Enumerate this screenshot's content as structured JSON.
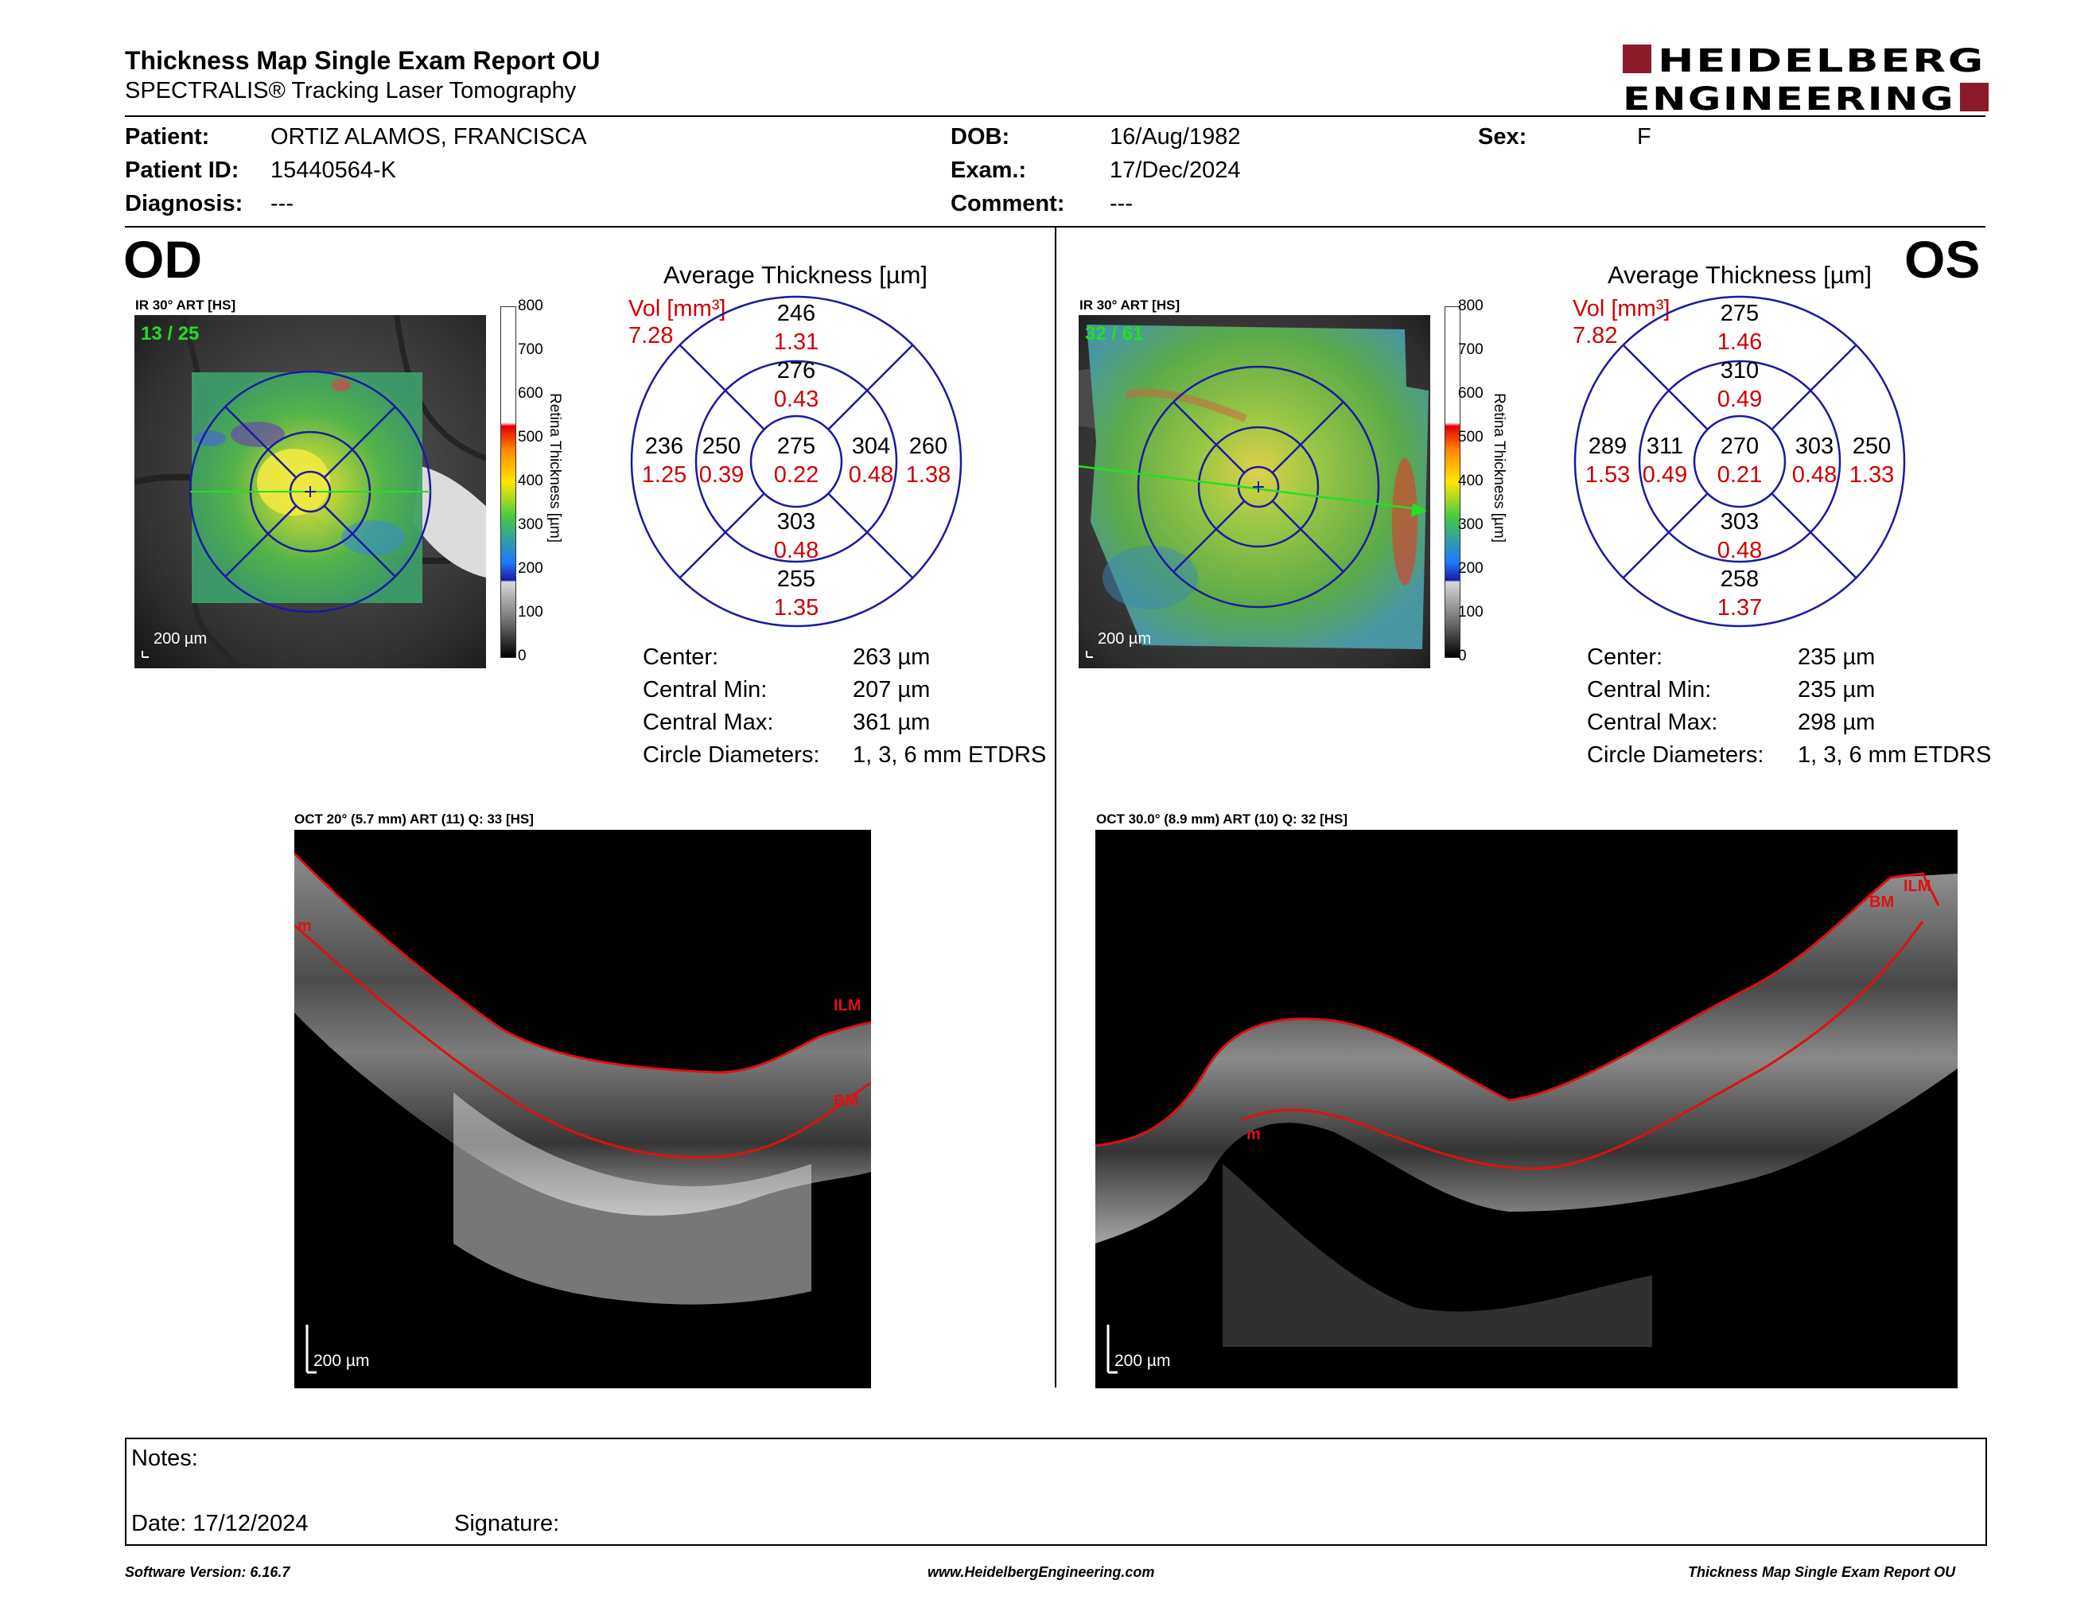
{
  "header": {
    "title": "Thickness Map Single Exam Report OU",
    "subtitle": "SPECTRALIS® Tracking Laser Tomography",
    "logo_line1": "HEIDELBERG",
    "logo_line2": "ENGINEERING",
    "logo_color": "#8b1a2b"
  },
  "patient": {
    "patient_label": "Patient:",
    "patient_value": "ORTIZ ALAMOS, FRANCISCA",
    "patient_id_label": "Patient ID:",
    "patient_id_value": "15440564-K",
    "diagnosis_label": "Diagnosis:",
    "diagnosis_value": "---",
    "dob_label": "DOB:",
    "dob_value": "16/Aug/1982",
    "exam_label": "Exam.:",
    "exam_value": "17/Dec/2024",
    "comment_label": "Comment:",
    "comment_value": "---",
    "sex_label": "Sex:",
    "sex_value": "F"
  },
  "od": {
    "eye_label": "OD",
    "fundus_caption": "IR 30° ART [HS]",
    "frame_counter": "13 / 25",
    "scale_bar": "200 µm",
    "avg_title": "Average Thickness [µm]",
    "vol_label": "Vol [mm³]",
    "vol_total": "7.28",
    "grid": {
      "outer_superior": "246",
      "outer_superior_vol": "1.31",
      "inner_superior": "276",
      "inner_superior_vol": "0.43",
      "outer_nasal": "236",
      "outer_nasal_vol": "1.25",
      "inner_nasal": "250",
      "inner_nasal_vol": "0.39",
      "center": "275",
      "center_vol": "0.22",
      "inner_temporal": "304",
      "inner_temporal_vol": "0.48",
      "outer_temporal": "260",
      "outer_temporal_vol": "1.38",
      "inner_inferior": "303",
      "inner_inferior_vol": "0.48",
      "outer_inferior": "255",
      "outer_inferior_vol": "1.35"
    },
    "stats": {
      "center_label": "Center:",
      "center_value": "263 µm",
      "min_label": "Central Min:",
      "min_value": "207 µm",
      "max_label": "Central Max:",
      "max_value": "361 µm",
      "diam_label": "Circle Diameters:",
      "diam_value": "1, 3, 6 mm ETDRS"
    },
    "oct_caption": "OCT 20° (5.7 mm) ART (11) Q: 33 [HS]",
    "oct_scale": "200 µm",
    "oct_labels": {
      "ilm": "ILM",
      "bm": "BM",
      "m": "m"
    }
  },
  "os": {
    "eye_label": "OS",
    "fundus_caption": "IR 30° ART [HS]",
    "frame_counter": "32 / 61",
    "scale_bar": "200 µm",
    "avg_title": "Average Thickness [µm]",
    "vol_label": "Vol [mm³]",
    "vol_total": "7.82",
    "grid": {
      "outer_superior": "275",
      "outer_superior_vol": "1.46",
      "inner_superior": "310",
      "inner_superior_vol": "0.49",
      "outer_nasal": "289",
      "outer_nasal_vol": "1.53",
      "inner_nasal": "311",
      "inner_nasal_vol": "0.49",
      "center": "270",
      "center_vol": "0.21",
      "inner_temporal": "303",
      "inner_temporal_vol": "0.48",
      "outer_temporal": "250",
      "outer_temporal_vol": "1.33",
      "inner_inferior": "303",
      "inner_inferior_vol": "0.48",
      "outer_inferior": "258",
      "outer_inferior_vol": "1.37"
    },
    "stats": {
      "center_label": "Center:",
      "center_value": "235 µm",
      "min_label": "Central Min:",
      "min_value": "235 µm",
      "max_label": "Central Max:",
      "max_value": "298 µm",
      "diam_label": "Circle Diameters:",
      "diam_value": "1, 3, 6 mm ETDRS"
    },
    "oct_caption": "OCT 30.0° (8.9 mm) ART (10) Q: 32 [HS]",
    "oct_scale": "200 µm",
    "oct_labels": {
      "ilm": "ILM",
      "bm": "BM",
      "m": "m"
    }
  },
  "colorbar": {
    "ticks": [
      "800",
      "700",
      "600",
      "500",
      "400",
      "300",
      "200",
      "100",
      "0"
    ],
    "title": "Retina Thickness [µm]"
  },
  "notes": {
    "notes_label": "Notes:",
    "date_label": "Date: 17/12/2024",
    "signature_label": "Signature:"
  },
  "footer": {
    "left": "Software Version: 6.16.7",
    "center": "www.HeidelbergEngineering.com",
    "right": "Thickness Map Single Exam Report OU"
  }
}
